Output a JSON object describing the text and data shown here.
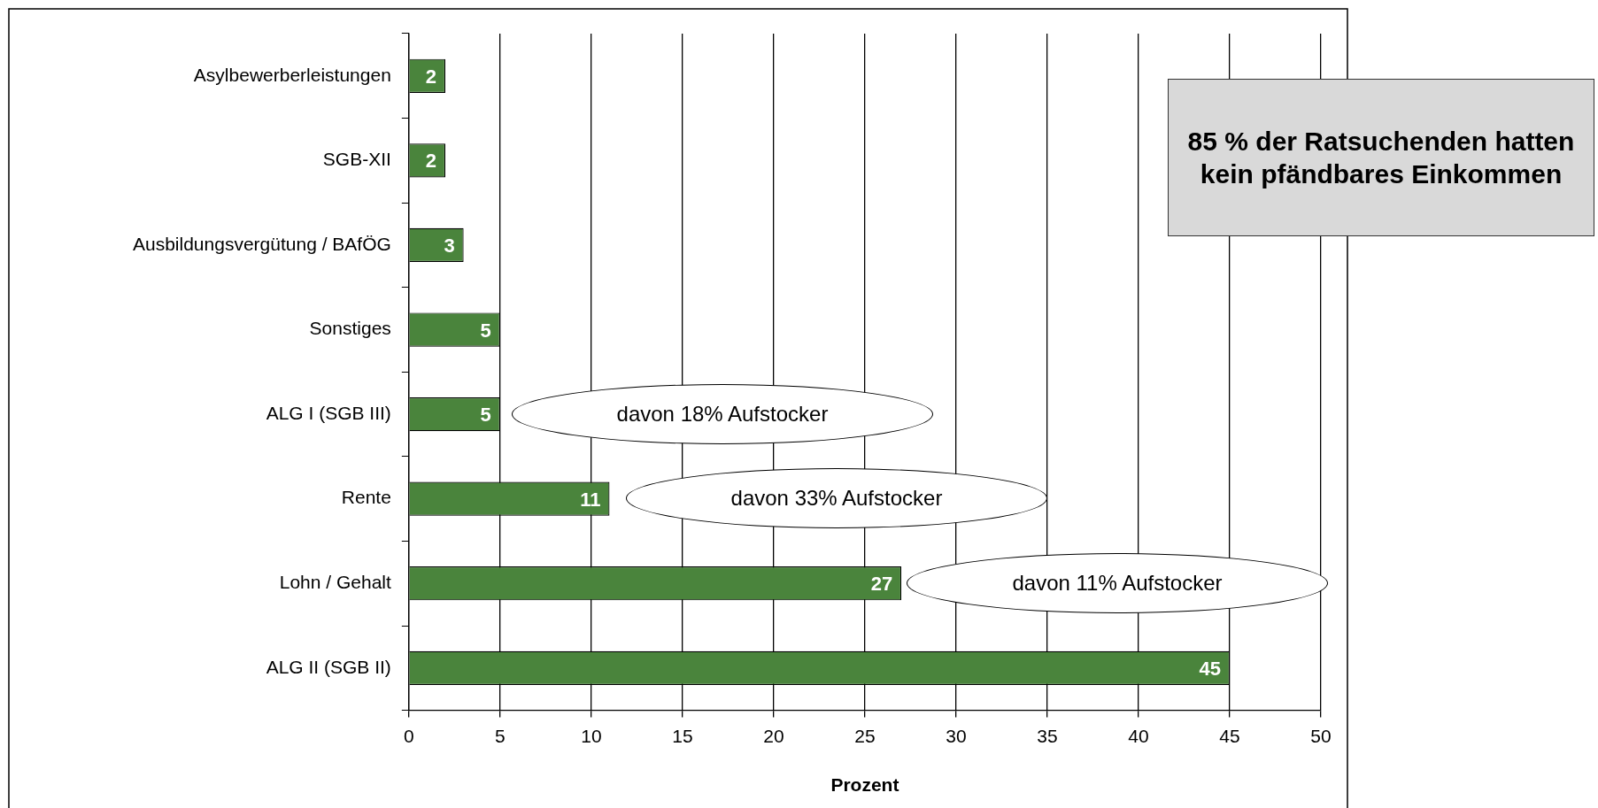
{
  "chart_data": {
    "type": "bar",
    "orientation": "horizontal",
    "xlabel": "Prozent",
    "categories": [
      "Asylbewerberleistungen",
      "SGB-XII",
      "Ausbildungsvergütung / BAfÖG",
      "Sonstiges",
      "ALG I (SGB III)",
      "Rente",
      "Lohn / Gehalt",
      "ALG II (SGB II)"
    ],
    "values": [
      2,
      2,
      3,
      5,
      5,
      11,
      27,
      45
    ],
    "color": "#4a843c",
    "xlim": [
      0,
      50
    ],
    "xticks": [
      0,
      5,
      10,
      15,
      20,
      25,
      30,
      35,
      40,
      45,
      50
    ],
    "grid": "x",
    "legend": false,
    "data_labels": true,
    "annotations": [
      "85 % der Ratsuchenden hatten kein pfändbares Einkommen",
      "davon 18% Aufstocker",
      "davon 33% Aufstocker",
      "davon 11% Aufstocker"
    ]
  }
}
